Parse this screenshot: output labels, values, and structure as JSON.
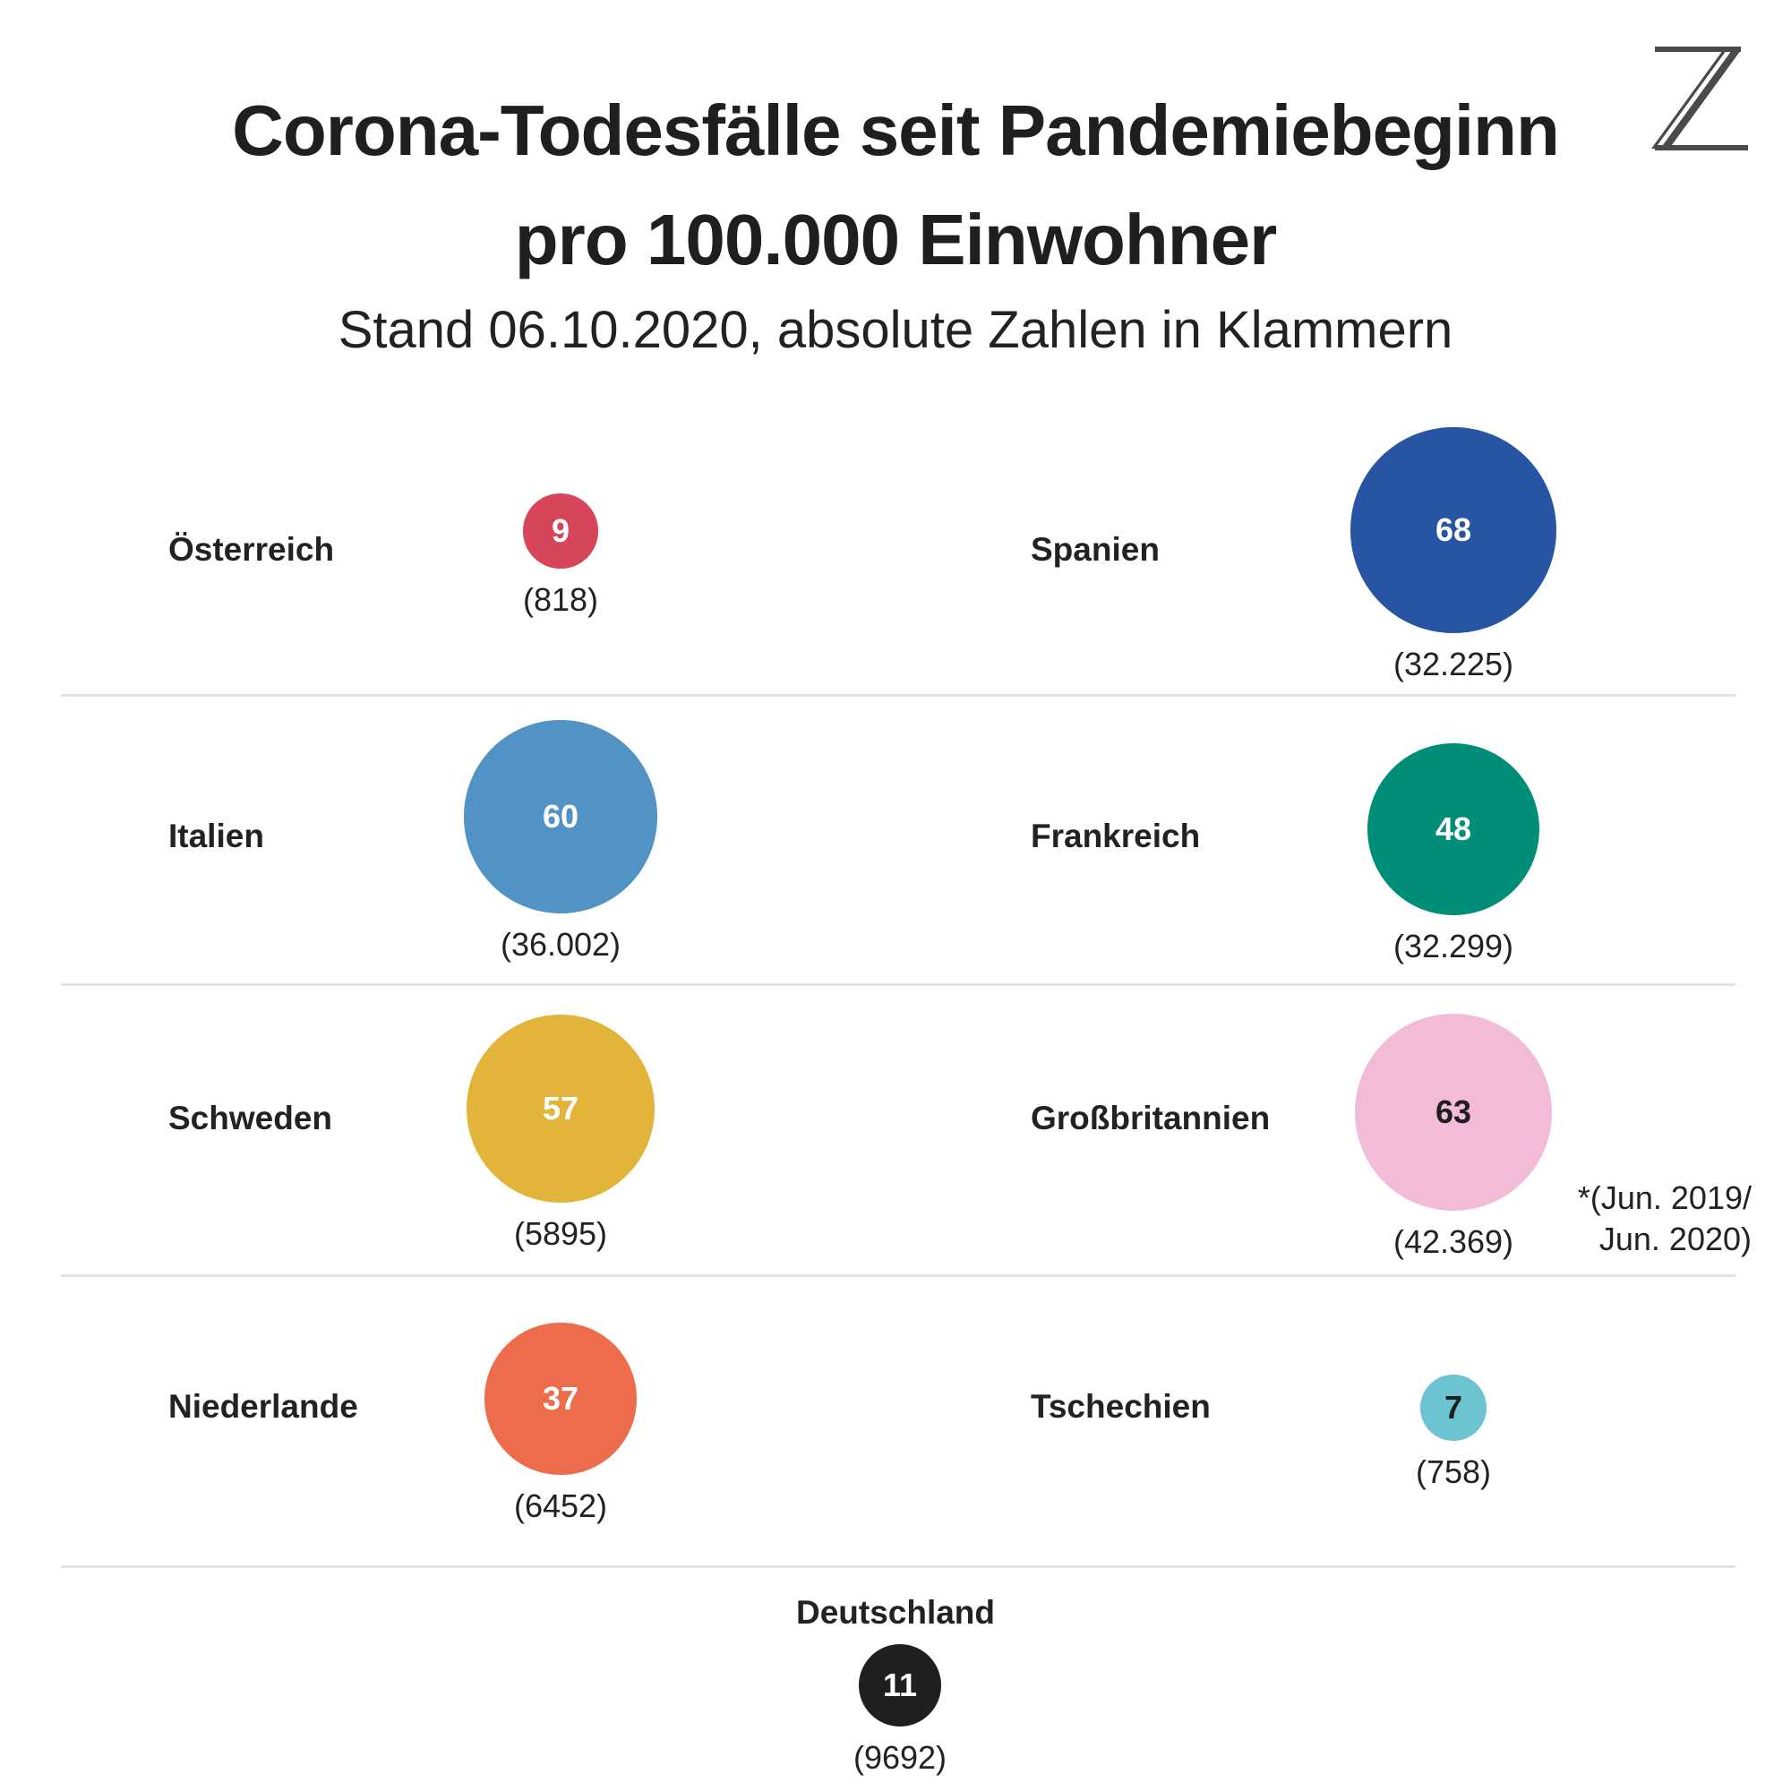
{
  "chart_data": {
    "type": "bubble",
    "title_line1": "Corona-Todesfälle seit Pandemiebeginn",
    "title_line2": "pro 100.000 Einwohner",
    "subtitle": "Stand 06.10.2020, absolute Zahlen in Klammern",
    "countries": [
      {
        "name": "Österreich",
        "per100k": 9,
        "absolute": "(818)",
        "color": "#d64559",
        "text_color": "#ffffff"
      },
      {
        "name": "Spanien",
        "per100k": 68,
        "absolute": "(32.225)",
        "color": "#2854a4",
        "text_color": "#ffffff"
      },
      {
        "name": "Italien",
        "per100k": 60,
        "absolute": "(36.002)",
        "color": "#5293c6",
        "text_color": "#ffffff"
      },
      {
        "name": "Frankreich",
        "per100k": 48,
        "absolute": "(32.299)",
        "color": "#008e78",
        "text_color": "#ffffff"
      },
      {
        "name": "Schweden",
        "per100k": 57,
        "absolute": "(5895)",
        "color": "#e2b43a",
        "text_color": "#ffffff"
      },
      {
        "name": "Großbritannien",
        "per100k": 63,
        "absolute": "(42.369)",
        "color": "#f2bcd9",
        "text_color": "#1f1f1f"
      },
      {
        "name": "Niederlande",
        "per100k": 37,
        "absolute": "(6452)",
        "color": "#ec6c4c",
        "text_color": "#ffffff"
      },
      {
        "name": "Tschechien",
        "per100k": 7,
        "absolute": "(758)",
        "color": "#6cc4d2",
        "text_color": "#1f1f1f"
      },
      {
        "name": "Deutschland",
        "per100k": 11,
        "absolute": "(9692)",
        "color": "#1f1f1f",
        "text_color": "#ffffff"
      }
    ],
    "footnote_line1": "*(Jun. 2019/",
    "footnote_line2": "Jun. 2020)"
  },
  "logo_glyph": "Z"
}
